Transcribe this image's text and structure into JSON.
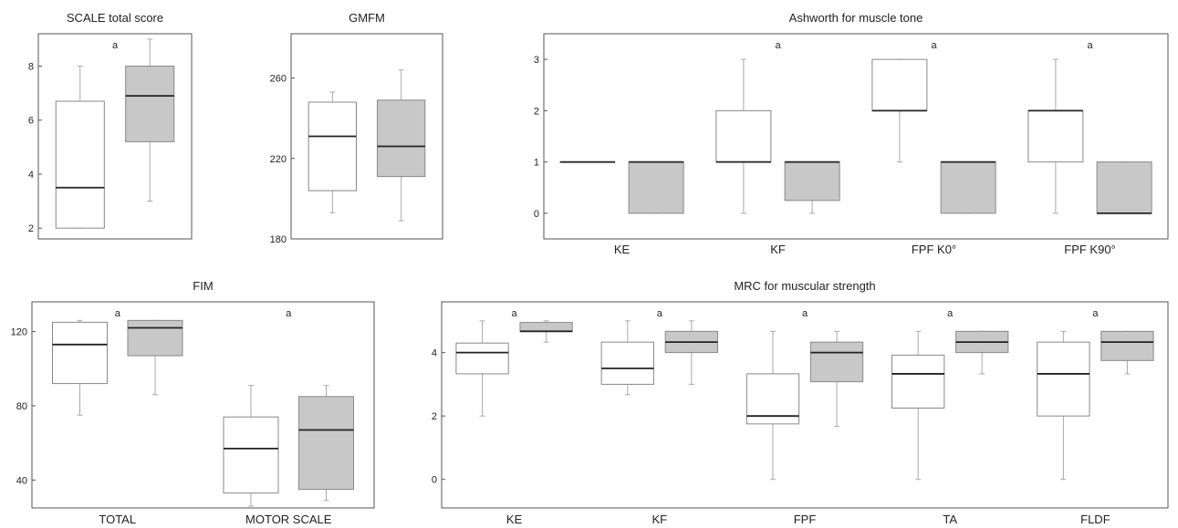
{
  "colors": {
    "pre": "#ffffff",
    "post": "#c8c8c8",
    "box_stroke": "#888888",
    "whisker": "#aaaaaa",
    "median": "#222222",
    "frame": "#555555"
  },
  "significance_marker": "a",
  "chart_data": [
    {
      "id": "scale",
      "type": "boxplot",
      "title": "SCALE total score",
      "ylim": [
        1.6,
        9.2
      ],
      "yticks": [
        "2",
        "4",
        "6",
        "8"
      ],
      "categories": [
        ""
      ],
      "groups": [
        {
          "category": 0,
          "series": "pre",
          "whisker": [
            2,
            8
          ],
          "box": [
            2,
            6.7
          ],
          "median": 3.5
        },
        {
          "category": 0,
          "series": "post",
          "whisker": [
            3,
            9
          ],
          "box": [
            5.2,
            8
          ],
          "median": 6.9
        }
      ],
      "significance": [
        0
      ]
    },
    {
      "id": "gmfm",
      "type": "boxplot",
      "title": "GMFM",
      "ylim": [
        180,
        282
      ],
      "yticks": [
        "180",
        "220",
        "260"
      ],
      "categories": [
        ""
      ],
      "groups": [
        {
          "category": 0,
          "series": "pre",
          "whisker": [
            193,
            253
          ],
          "box": [
            204,
            248
          ],
          "median": 231
        },
        {
          "category": 0,
          "series": "post",
          "whisker": [
            189,
            264
          ],
          "box": [
            211,
            249
          ],
          "median": 226
        }
      ],
      "significance": []
    },
    {
      "id": "ashworth",
      "type": "boxplot",
      "title": "Ashworth for muscle tone",
      "ylim": [
        -0.5,
        3.5
      ],
      "yticks": [
        "0",
        "1",
        "2",
        "3"
      ],
      "categories": [
        "KE",
        "KF",
        "FPF K0°",
        "FPF K90°"
      ],
      "groups": [
        {
          "category": 0,
          "series": "pre",
          "whisker": [
            1,
            1
          ],
          "box": [
            1,
            1
          ],
          "median": 1
        },
        {
          "category": 0,
          "series": "post",
          "whisker": [
            0,
            1
          ],
          "box": [
            0,
            1
          ],
          "median": 1
        },
        {
          "category": 1,
          "series": "pre",
          "whisker": [
            0,
            3
          ],
          "box": [
            1,
            2
          ],
          "median": 1
        },
        {
          "category": 1,
          "series": "post",
          "whisker": [
            0,
            1
          ],
          "box": [
            0.25,
            1
          ],
          "median": 1
        },
        {
          "category": 2,
          "series": "pre",
          "whisker": [
            1,
            3
          ],
          "box": [
            2,
            3
          ],
          "median": 2
        },
        {
          "category": 2,
          "series": "post",
          "whisker": [
            0,
            1
          ],
          "box": [
            0,
            1
          ],
          "median": 1
        },
        {
          "category": 3,
          "series": "pre",
          "whisker": [
            0,
            3
          ],
          "box": [
            1,
            2
          ],
          "median": 2
        },
        {
          "category": 3,
          "series": "post",
          "whisker": [
            0,
            1
          ],
          "box": [
            0,
            1
          ],
          "median": 0
        }
      ],
      "significance": [
        1,
        2,
        3
      ]
    },
    {
      "id": "fim",
      "type": "boxplot",
      "title": "FIM",
      "ylim": [
        25,
        136
      ],
      "yticks": [
        "40",
        "80",
        "120"
      ],
      "categories": [
        "TOTAL",
        "MOTOR SCALE"
      ],
      "groups": [
        {
          "category": 0,
          "series": "pre",
          "whisker": [
            75,
            126
          ],
          "box": [
            92,
            125
          ],
          "median": 113
        },
        {
          "category": 0,
          "series": "post",
          "whisker": [
            86,
            126
          ],
          "box": [
            107,
            126
          ],
          "median": 122
        },
        {
          "category": 1,
          "series": "pre",
          "whisker": [
            26,
            91
          ],
          "box": [
            33,
            74
          ],
          "median": 57
        },
        {
          "category": 1,
          "series": "post",
          "whisker": [
            29,
            91
          ],
          "box": [
            35,
            85
          ],
          "median": 67
        }
      ],
      "significance": [
        0,
        1
      ]
    },
    {
      "id": "mrc",
      "type": "boxplot",
      "title": "MRC for muscular strength",
      "ylim": [
        -0.9,
        5.6
      ],
      "yticks": [
        "0",
        "2",
        "4"
      ],
      "categories": [
        "KE",
        "KF",
        "FPF",
        "TA",
        "FLDF"
      ],
      "groups": [
        {
          "category": 0,
          "series": "pre",
          "whisker": [
            2,
            5
          ],
          "box": [
            3.33,
            4.3
          ],
          "median": 4
        },
        {
          "category": 0,
          "series": "post",
          "whisker": [
            4.33,
            5
          ],
          "box": [
            4.67,
            4.95
          ],
          "median": 4.67
        },
        {
          "category": 1,
          "series": "pre",
          "whisker": [
            2.67,
            5
          ],
          "box": [
            3,
            4.33
          ],
          "median": 3.5
        },
        {
          "category": 1,
          "series": "post",
          "whisker": [
            3,
            5
          ],
          "box": [
            4,
            4.67
          ],
          "median": 4.33
        },
        {
          "category": 2,
          "series": "pre",
          "whisker": [
            0,
            4.67
          ],
          "box": [
            1.75,
            3.33
          ],
          "median": 2
        },
        {
          "category": 2,
          "series": "post",
          "whisker": [
            1.67,
            4.67
          ],
          "box": [
            3.08,
            4.33
          ],
          "median": 4
        },
        {
          "category": 3,
          "series": "pre",
          "whisker": [
            0,
            4.67
          ],
          "box": [
            2.25,
            3.92
          ],
          "median": 3.33
        },
        {
          "category": 3,
          "series": "post",
          "whisker": [
            3.33,
            4.67
          ],
          "box": [
            4,
            4.67
          ],
          "median": 4.33
        },
        {
          "category": 4,
          "series": "pre",
          "whisker": [
            0,
            4.67
          ],
          "box": [
            2,
            4.33
          ],
          "median": 3.33
        },
        {
          "category": 4,
          "series": "post",
          "whisker": [
            3.33,
            4.67
          ],
          "box": [
            3.75,
            4.67
          ],
          "median": 4.33
        }
      ],
      "significance": [
        0,
        1,
        2,
        3,
        4
      ]
    }
  ]
}
